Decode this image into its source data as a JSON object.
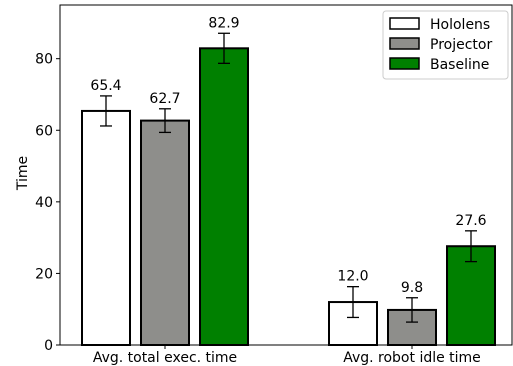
{
  "chart_data": {
    "type": "bar",
    "title": "",
    "xlabel": "",
    "ylabel": "Time",
    "ylim": [
      0,
      95
    ],
    "yticks": [
      "0",
      "20",
      "40",
      "60",
      "80"
    ],
    "categories": [
      "Avg. total exec. time",
      "Avg. robot idle time"
    ],
    "series": [
      {
        "name": "Hololens",
        "color": "#ffffff",
        "values": [
          65.4,
          12.0
        ],
        "labels": [
          "65.4",
          "12.0"
        ],
        "errors": [
          4.2,
          4.3
        ]
      },
      {
        "name": "Projector",
        "color": "#8e8e8b",
        "values": [
          62.7,
          9.8
        ],
        "labels": [
          "62.7",
          "9.8"
        ],
        "errors": [
          3.3,
          3.4
        ]
      },
      {
        "name": "Baseline",
        "color": "#008000",
        "values": [
          82.9,
          27.6
        ],
        "labels": [
          "82.9",
          "27.6"
        ],
        "errors": [
          4.2,
          4.3
        ]
      }
    ],
    "legend": "top-right",
    "grid": false
  }
}
